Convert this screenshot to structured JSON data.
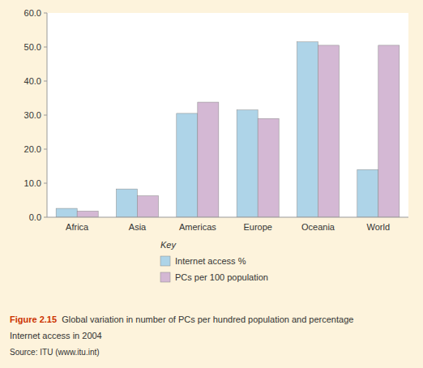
{
  "chart_data": {
    "type": "bar",
    "categories": [
      "Africa",
      "Asia",
      "Americas",
      "Europe",
      "Oceania",
      "World"
    ],
    "series": [
      {
        "name": "Internet access %",
        "color": "#aed4e8",
        "values": [
          2.6,
          8.3,
          30.5,
          31.5,
          51.5,
          14.0
        ]
      },
      {
        "name": "PCs per 100 population",
        "color": "#d4b8d4",
        "values": [
          1.8,
          6.3,
          33.8,
          29.0,
          50.5,
          50.5
        ]
      }
    ],
    "ylim": [
      0,
      60
    ],
    "yticks": [
      {
        "value": 0,
        "label": "0.0"
      },
      {
        "value": 10,
        "label": "10.0"
      },
      {
        "value": 20,
        "label": "20.0"
      },
      {
        "value": 30,
        "label": "30.0"
      },
      {
        "value": 40,
        "label": "40.0"
      },
      {
        "value": 50,
        "label": "50.0"
      },
      {
        "value": 60,
        "label": "60.0"
      }
    ],
    "grid": false,
    "legend": "bottom",
    "legend_title": "Key",
    "annotations": [
      "Figure 2.15",
      "  Global variation in number of PCs per hundred population and percentage",
      "Internet access in 2004",
      "Source: ITU (www.itu.int)"
    ]
  }
}
